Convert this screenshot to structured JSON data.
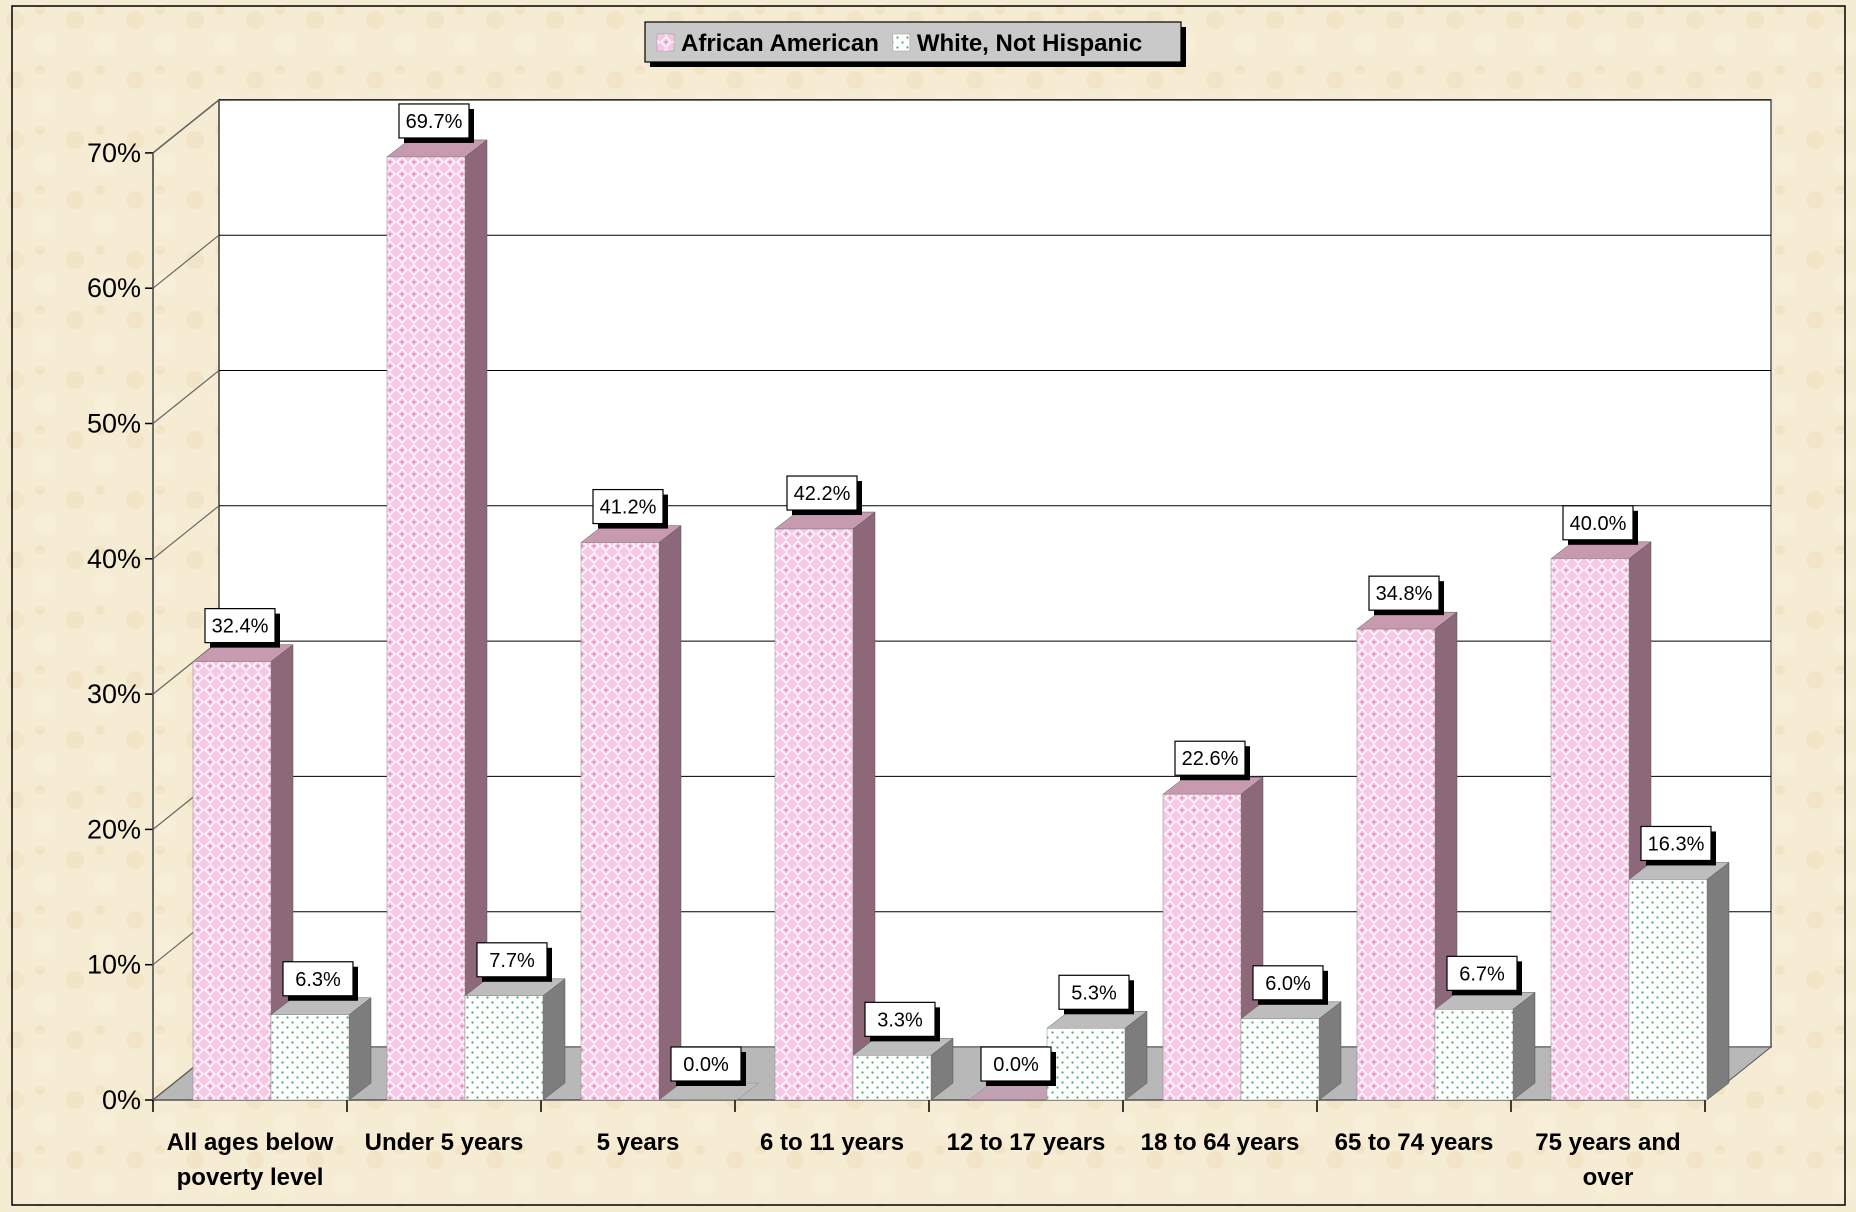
{
  "chart_data": {
    "type": "bar",
    "title": "",
    "xlabel": "",
    "ylabel": "",
    "ylim": [
      0,
      0.7
    ],
    "y_ticks": [
      "0%",
      "10%",
      "20%",
      "30%",
      "40%",
      "50%",
      "60%",
      "70%"
    ],
    "grid": true,
    "legend_position": "top-center",
    "categories": [
      [
        "All ages below",
        "poverty level"
      ],
      [
        "Under 5 years"
      ],
      [
        "5 years"
      ],
      [
        "6 to 11 years"
      ],
      [
        "12 to 17 years"
      ],
      [
        "18 to 64 years"
      ],
      [
        "65 to 74 years"
      ],
      [
        "75 years and",
        "over"
      ]
    ],
    "series": [
      {
        "name": "African American",
        "color": "#f7c8e6",
        "pattern": "diamond-dots",
        "values": [
          0.324,
          0.697,
          0.412,
          0.422,
          0.0,
          0.226,
          0.348,
          0.4
        ],
        "labels": [
          "32.4%",
          "69.7%",
          "41.2%",
          "42.2%",
          "0.0%",
          "22.6%",
          "34.8%",
          "40.0%"
        ]
      },
      {
        "name": "White, Not Hispanic",
        "color": "#ffffff",
        "pattern": "green-dots",
        "values": [
          0.063,
          0.077,
          0.0,
          0.033,
          0.053,
          0.06,
          0.067,
          0.163
        ],
        "labels": [
          "6.3%",
          "7.7%",
          "0.0%",
          "3.3%",
          "5.3%",
          "6.0%",
          "6.7%",
          "16.3%"
        ]
      }
    ]
  }
}
